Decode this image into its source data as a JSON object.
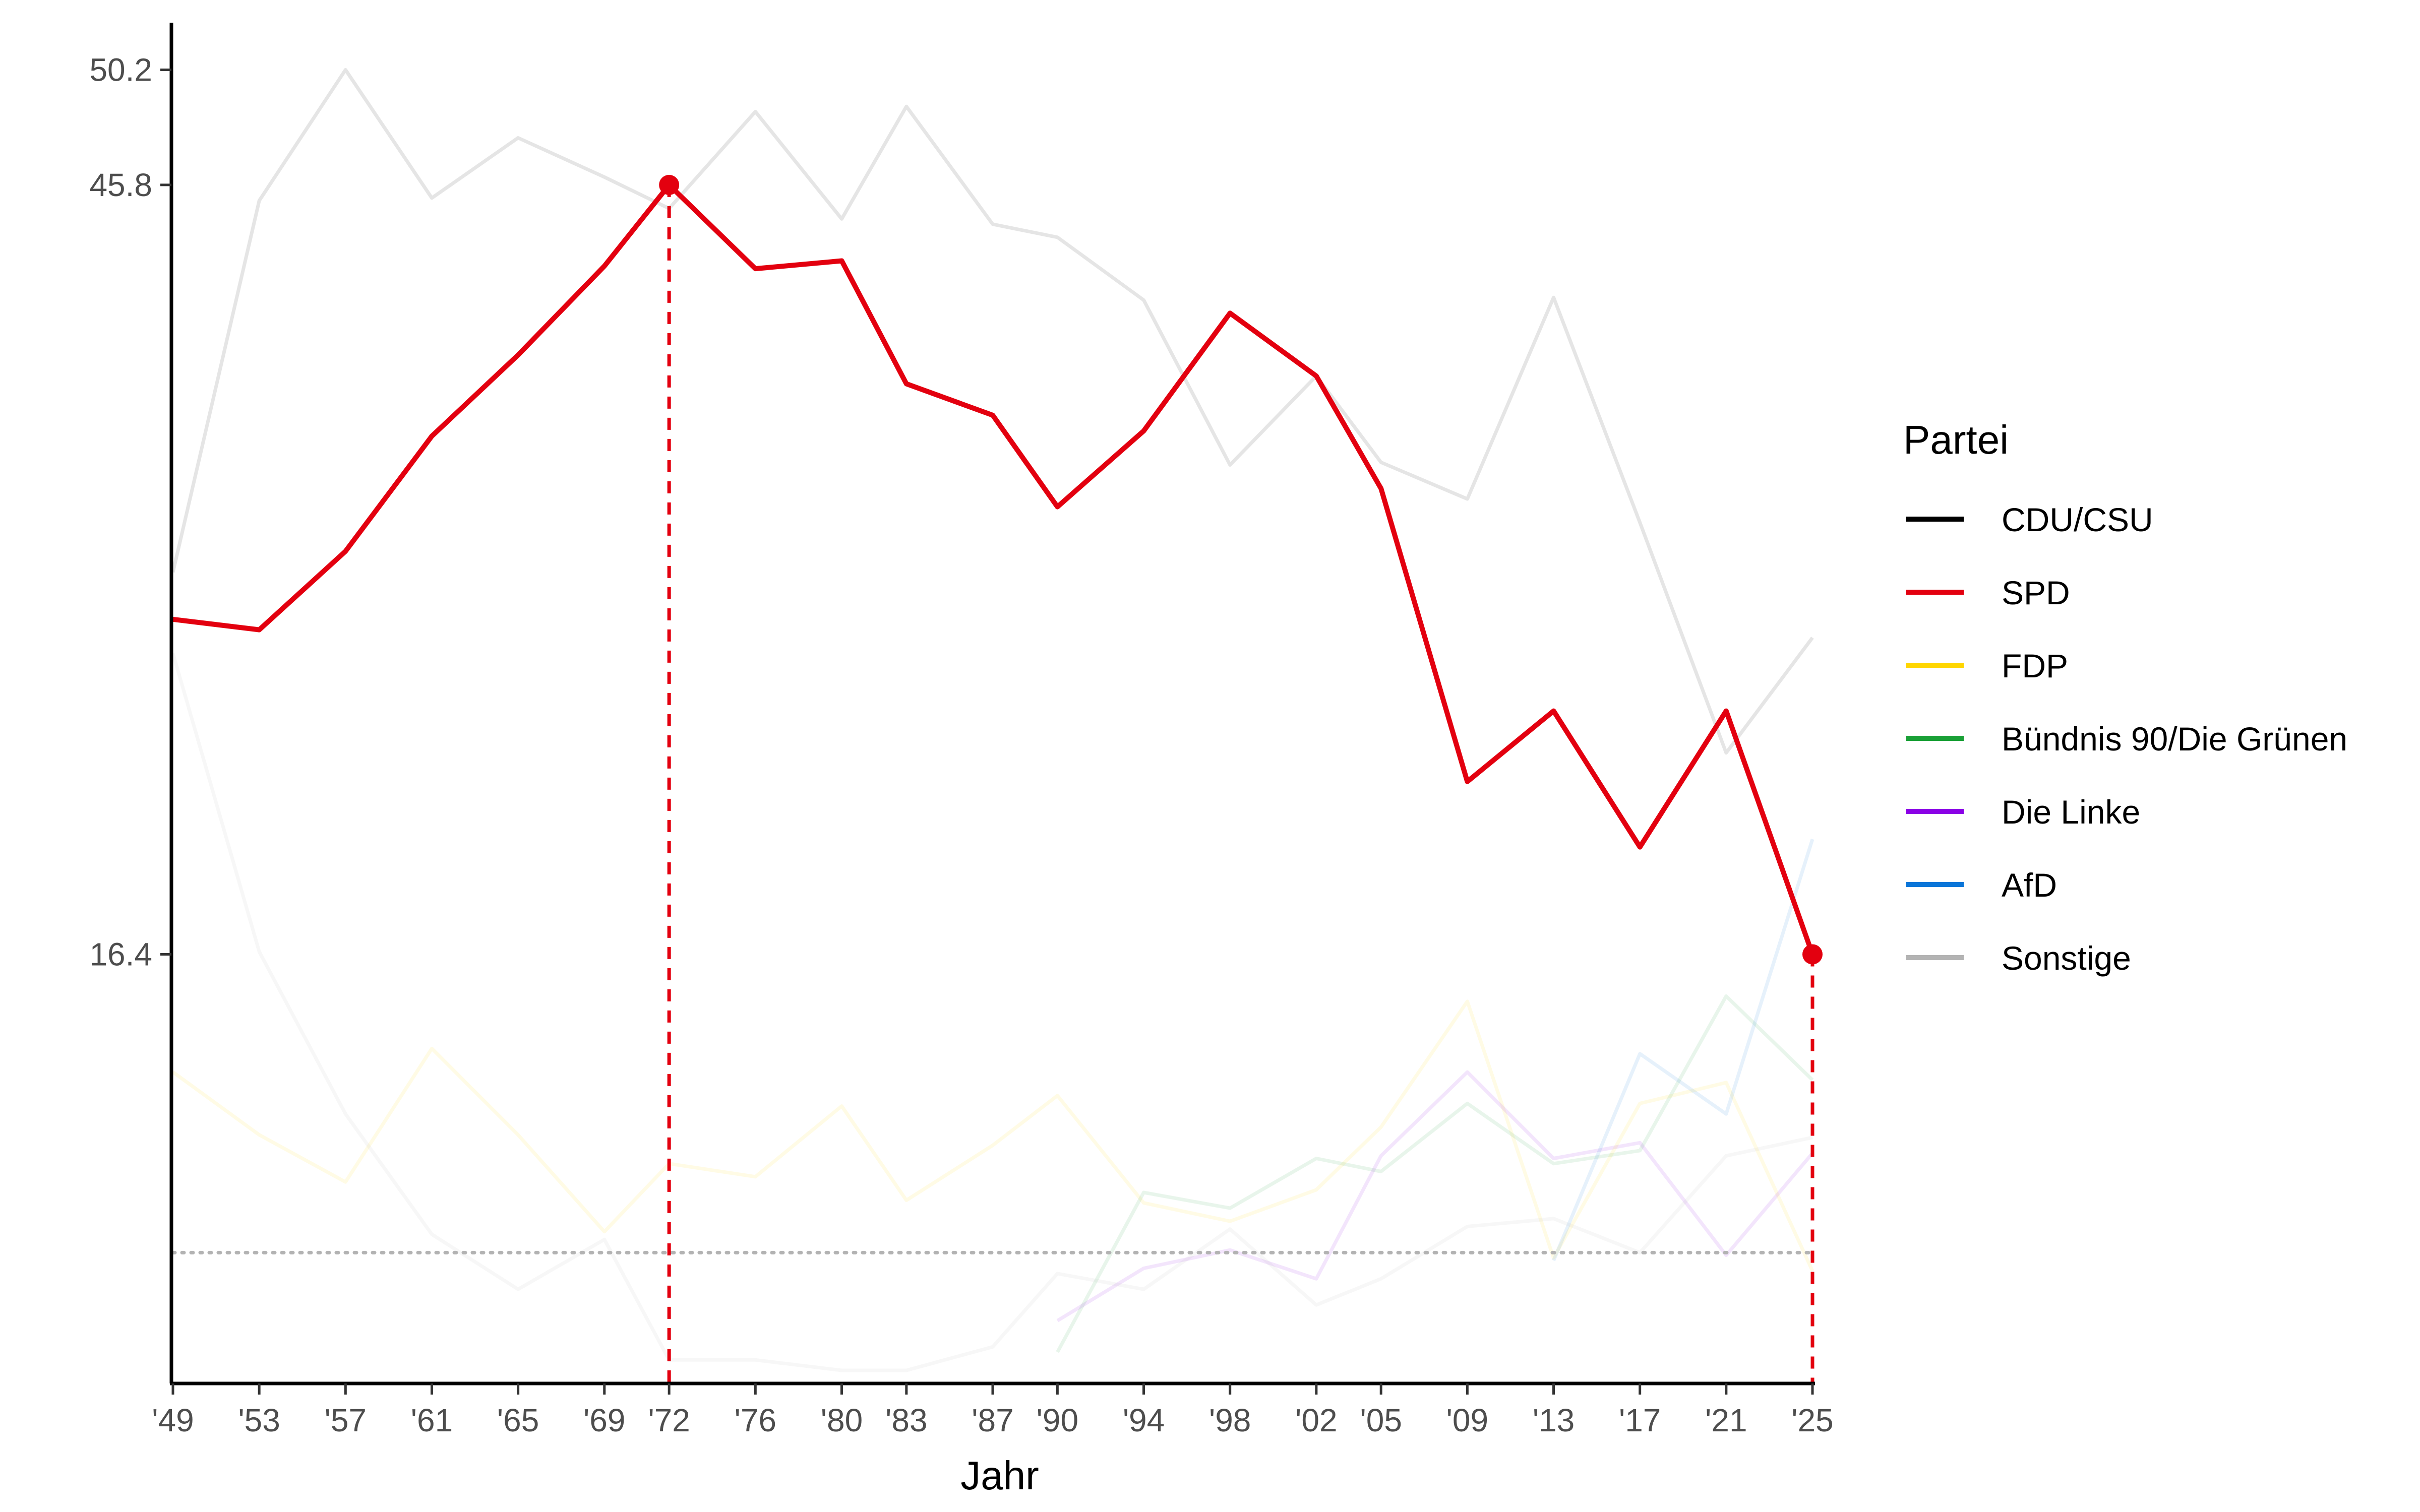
{
  "chart_data": {
    "type": "line",
    "xlabel": "Jahr",
    "ylabel": "",
    "x_years": [
      1949,
      1953,
      1957,
      1961,
      1965,
      1969,
      1972,
      1976,
      1980,
      1983,
      1987,
      1990,
      1994,
      1998,
      2002,
      2005,
      2009,
      2013,
      2017,
      2021,
      2025
    ],
    "x_tick_labels": [
      "'49",
      "'53",
      "'57",
      "'61",
      "'65",
      "'69",
      "'72",
      "'76",
      "'80",
      "'83",
      "'87",
      "'90",
      "'94",
      "'98",
      "'02",
      "'05",
      "'09",
      "'13",
      "'17",
      "'21",
      "'25"
    ],
    "y_ticks": [
      16.4,
      45.8,
      50.2
    ],
    "ylim": [
      0,
      52
    ],
    "threshold": 5,
    "highlight": "SPD",
    "markers": [
      {
        "series": "SPD",
        "year": 1972,
        "value": 45.8
      },
      {
        "series": "SPD",
        "year": 2025,
        "value": 16.4
      }
    ],
    "legend": {
      "title": "Partei",
      "position": "right"
    },
    "series": [
      {
        "name": "CDU/CSU",
        "color": "#000000",
        "opacity": 0.1,
        "values": [
          31.0,
          45.2,
          50.2,
          45.3,
          47.6,
          46.1,
          44.9,
          48.6,
          44.5,
          48.8,
          44.3,
          43.8,
          41.4,
          35.1,
          38.5,
          35.2,
          33.8,
          41.5,
          32.9,
          24.1,
          28.5
        ]
      },
      {
        "name": "SPD",
        "color": "#e3000f",
        "opacity": 1.0,
        "values": [
          29.2,
          28.8,
          31.8,
          36.2,
          39.3,
          42.7,
          45.8,
          42.6,
          42.9,
          38.2,
          37.0,
          33.5,
          36.4,
          40.9,
          38.5,
          34.2,
          23.0,
          25.7,
          20.5,
          25.7,
          16.4
        ]
      },
      {
        "name": "FDP",
        "color": "#ffd600",
        "opacity": 0.1,
        "values": [
          11.9,
          9.5,
          7.7,
          12.8,
          9.5,
          5.8,
          8.4,
          7.9,
          10.6,
          7.0,
          9.1,
          11.0,
          6.9,
          6.2,
          7.4,
          9.8,
          14.6,
          4.8,
          10.7,
          11.5,
          4.3
        ]
      },
      {
        "name": "Bündnis 90/Die Grünen",
        "color": "#1aa037",
        "opacity": 0.1,
        "values": [
          null,
          null,
          null,
          null,
          null,
          null,
          null,
          null,
          null,
          null,
          null,
          1.2,
          7.3,
          6.7,
          8.6,
          8.1,
          10.7,
          8.4,
          8.9,
          14.8,
          11.6
        ]
      },
      {
        "name": "Die Linke",
        "color": "#8b00e6",
        "opacity": 0.1,
        "values": [
          null,
          null,
          null,
          null,
          null,
          null,
          null,
          null,
          null,
          null,
          null,
          2.4,
          4.4,
          5.1,
          4.0,
          8.7,
          11.9,
          8.6,
          9.2,
          4.9,
          8.8
        ]
      },
      {
        "name": "AfD",
        "color": "#0a75d8",
        "opacity": 0.1,
        "values": [
          null,
          null,
          null,
          null,
          null,
          null,
          null,
          null,
          null,
          null,
          null,
          null,
          null,
          null,
          null,
          null,
          null,
          4.7,
          12.6,
          10.3,
          20.8
        ]
      },
      {
        "name": "Sonstige",
        "color": "#b3b3b3",
        "opacity": 0.1,
        "values": [
          27.9,
          16.5,
          10.3,
          5.7,
          3.6,
          5.5,
          0.9,
          0.9,
          0.5,
          0.5,
          1.4,
          4.2,
          3.6,
          5.9,
          3.0,
          4.0,
          6.0,
          6.3,
          5.0,
          8.7,
          9.4
        ]
      }
    ]
  }
}
